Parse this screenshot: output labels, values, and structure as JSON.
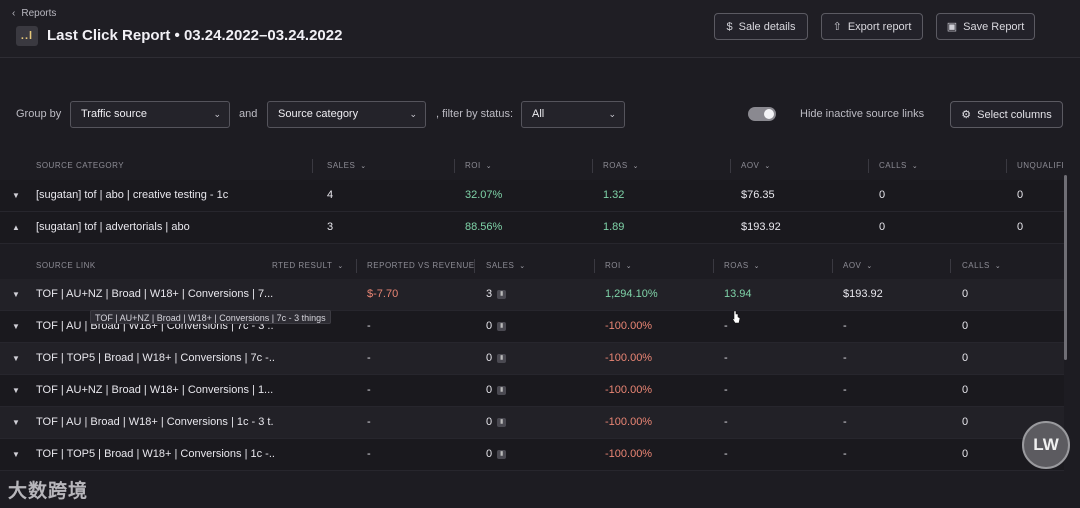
{
  "header": {
    "back_label": "Reports",
    "app_icon": "..l",
    "title": "Last Click Report • 03.24.2022–03.24.2022",
    "buttons": [
      {
        "label": "Sale details",
        "icon": "dollar-icon"
      },
      {
        "label": "Export report",
        "icon": "export-icon"
      },
      {
        "label": "Save Report",
        "icon": "save-icon"
      }
    ]
  },
  "filters": {
    "group_by_label": "Group by",
    "group_by_value": "Traffic source",
    "and_label": "and",
    "second_value": "Source category",
    "status_label": ", filter by status:",
    "status_value": "All",
    "toggle_label": "Hide inactive source links",
    "toggle_on": true,
    "select_columns_label": "Select columns"
  },
  "category_table": {
    "columns": [
      "SOURCE CATEGORY",
      "SALES",
      "ROI",
      "ROAS",
      "AOV",
      "CALLS",
      "UNQUALIFI"
    ],
    "rows": [
      {
        "name": "[sugatan] tof | abo | creative testing - 1c",
        "sales": "4",
        "roi": "32.07%",
        "roas": "1.32",
        "aov": "$76.35",
        "calls": "0",
        "unq": "0",
        "expanded": false
      },
      {
        "name": "[sugatan] tof | advertorials | abo",
        "sales": "3",
        "roi": "88.56%",
        "roas": "1.89",
        "aov": "$193.92",
        "calls": "0",
        "unq": "0",
        "expanded": true
      }
    ]
  },
  "link_table": {
    "columns": [
      "SOURCE LINK",
      "RTED RESULT",
      "REPORTED VS REVENUE",
      "SALES",
      "ROI",
      "ROAS",
      "AOV",
      "CALLS"
    ],
    "rows": [
      {
        "name": "TOF | AU+NZ | Broad | W18+ | Conversions | 7...",
        "rep": "$-7.70",
        "sales": "3",
        "roi": "1,294.10%",
        "roas": "13.94",
        "aov": "$193.92",
        "calls": "0"
      },
      {
        "name": "TOF | AU | Broad | W18+ | Conversions | 7c - 3 ...",
        "rep": "-",
        "sales": "0",
        "roi": "-100.00%",
        "roas": "-",
        "aov": "-",
        "calls": "0"
      },
      {
        "name": "TOF | TOP5 | Broad | W18+ | Conversions | 7c -...",
        "rep": "-",
        "sales": "0",
        "roi": "-100.00%",
        "roas": "-",
        "aov": "-",
        "calls": "0"
      },
      {
        "name": "TOF | AU+NZ | Broad | W18+ | Conversions | 1...",
        "rep": "-",
        "sales": "0",
        "roi": "-100.00%",
        "roas": "-",
        "aov": "-",
        "calls": "0"
      },
      {
        "name": "TOF | AU | Broad | W18+ | Conversions | 1c - 3 t...",
        "rep": "-",
        "sales": "0",
        "roi": "-100.00%",
        "roas": "-",
        "aov": "-",
        "calls": "0"
      },
      {
        "name": "TOF | TOP5 | Broad | W18+ | Conversions | 1c -...",
        "rep": "-",
        "sales": "0",
        "roi": "-100.00%",
        "roas": "-",
        "aov": "-",
        "calls": "0"
      }
    ],
    "tooltip": "TOF | AU+NZ | Broad | W18+ | Conversions | 7c - 3 things"
  },
  "watermark": {
    "logo_text": "LW",
    "brand_text": "大数跨境"
  },
  "colors": {
    "background": "#1d1c22",
    "positive": "#7fd3a8",
    "negative": "#e98574"
  }
}
